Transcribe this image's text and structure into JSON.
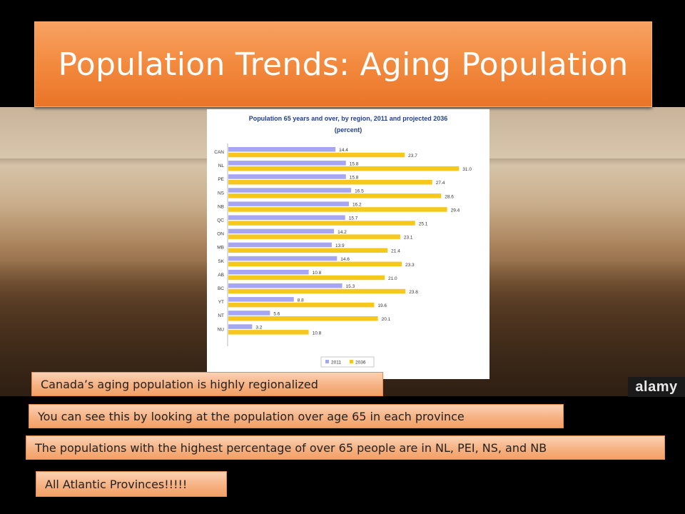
{
  "slide": {
    "title": "Population Trends: Aging Population",
    "watermark": "alamy",
    "notes": [
      "Canada’s aging population is highly regionalized",
      "You can see this by looking at the population over age 65 in each province",
      "The populations with the highest percentage of over 65 people are in NL, PEI, NS, and NB",
      "All Atlantic Provinces!!!!!"
    ]
  },
  "colors": {
    "title_bg": "#f28a3e",
    "series_2011": "#a6a6f2",
    "series_2036": "#f6c81e",
    "note_bg": "#f6b283"
  },
  "chart_data": {
    "type": "bar",
    "orientation": "horizontal",
    "title": "Population 65 years and over, by region, 2011 and projected 2036",
    "subtitle": "(percent)",
    "categories": [
      "CAN",
      "NL",
      "PE",
      "NS",
      "NB",
      "QC",
      "ON",
      "MB",
      "SK",
      "AB",
      "BC",
      "YT",
      "NT",
      "NU"
    ],
    "series": [
      {
        "name": "2011",
        "values": [
          14.4,
          15.8,
          15.8,
          16.5,
          16.2,
          15.7,
          14.2,
          13.9,
          14.6,
          10.8,
          15.3,
          8.8,
          5.6,
          3.2
        ]
      },
      {
        "name": "2036",
        "values": [
          23.7,
          31.0,
          27.4,
          28.6,
          29.4,
          25.1,
          23.1,
          21.4,
          23.3,
          21.0,
          23.8,
          19.6,
          20.1,
          10.8
        ]
      }
    ],
    "value_labels": {
      "2011": [
        "14.4",
        "15.8",
        "15.8",
        "16.5",
        "16.2",
        "15.7",
        "14.2",
        "13.9",
        "14.6",
        "10.8",
        "15.3",
        "8.8",
        "5.6",
        "3.2"
      ],
      "2036": [
        "23.7",
        "31.0",
        "27.4",
        "28.6",
        "29.4",
        "25.1",
        "23.1",
        "21.4",
        "23.3",
        "21.0",
        "23.8",
        "19.6",
        "20.1",
        "10.8"
      ]
    },
    "xlim": [
      0,
      35
    ],
    "grid": false,
    "legend_position": "bottom-right"
  }
}
